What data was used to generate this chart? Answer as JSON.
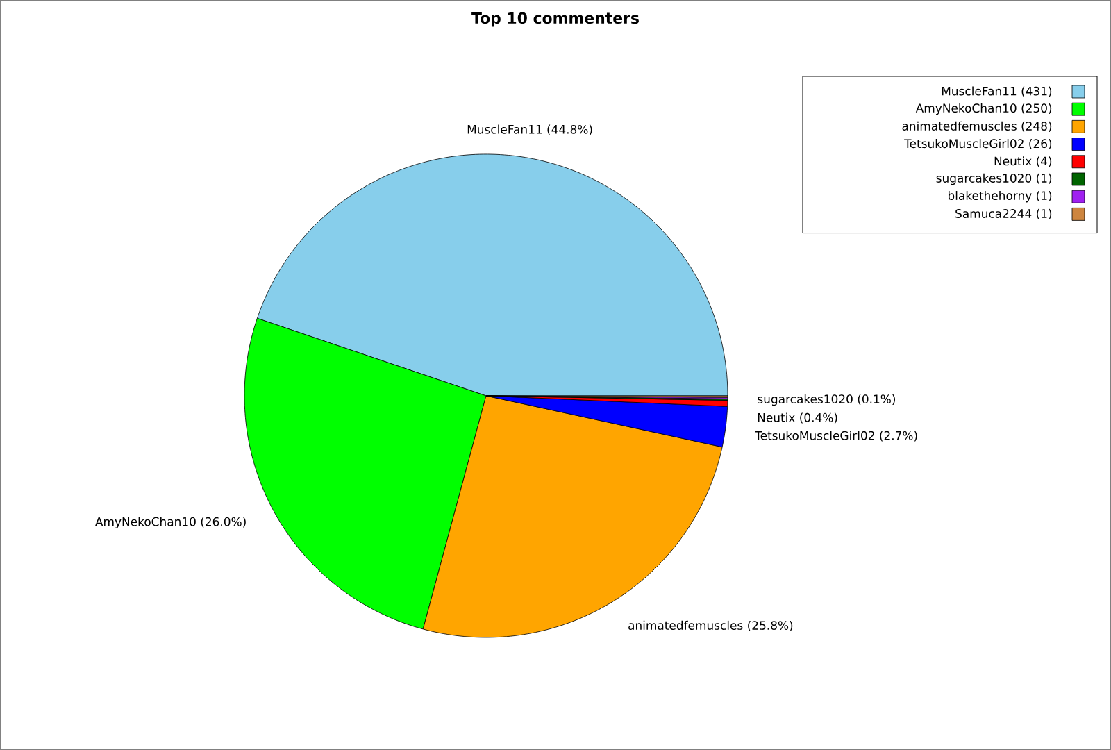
{
  "chart_data": {
    "type": "pie",
    "title": "Top 10 commenters",
    "categories": [
      "MuscleFan11 (431)",
      "AmyNekoChan10 (250)",
      "animatedfemuscles (248)",
      "TetsukoMuscleGirl02 (26)",
      "Neutix (4)",
      "sugarcakes1020 (1)",
      "blakethehorny (1)",
      "Samuca2244 (1)"
    ],
    "values": [
      44.8,
      26.0,
      25.8,
      2.7,
      0.4,
      0.1,
      0.1,
      0.1
    ],
    "colors": [
      "#87ceeb",
      "#00ff00",
      "#ffa500",
      "#0000ff",
      "#ff0000",
      "#006400",
      "#a020f0",
      "#cd853f"
    ],
    "value_labels": [
      "MuscleFan11 (44.8%)",
      "AmyNekoChan10 (26.0%)",
      "animatedfemuscles (25.8%)",
      "TetsukoMuscleGirl02 (2.7%)",
      "Neutix (0.4%)",
      "sugarcakes1020 (0.1%)",
      null,
      null
    ],
    "legend": "top right"
  }
}
